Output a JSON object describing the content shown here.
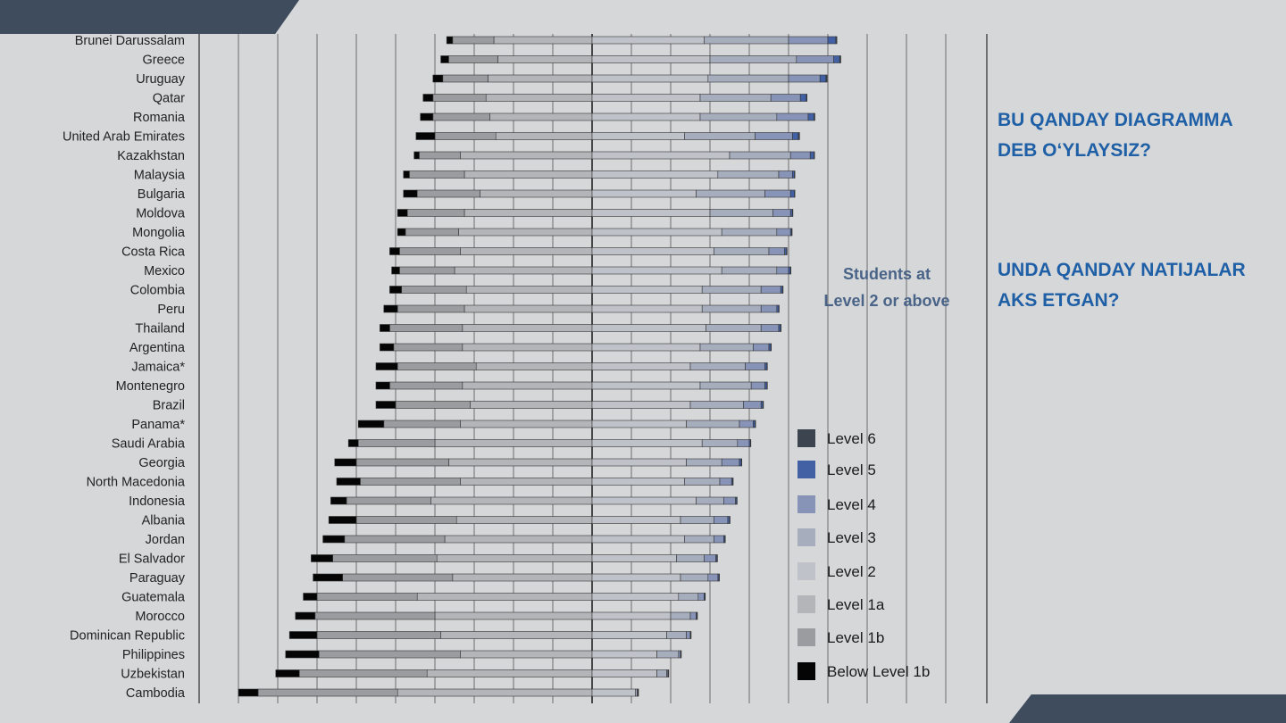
{
  "colors": {
    "level6": "#3b444f",
    "level5": "#4260a4",
    "level4": "#8794b8",
    "level3": "#a6adbd",
    "level2": "#bfc2c9",
    "level1a": "#b4b5b8",
    "level1b": "#9b9c9f",
    "below1b": "#050505",
    "question_text": "#1f5fa6",
    "band": "#3f4c5e"
  },
  "questions": {
    "q1": "BU QANDAY DIAGRAMMA DEB O‘YLAYSIZ?",
    "q2": "UNDA QANDAY NATIJALAR AKS ETGAN?"
  },
  "chart_data": {
    "type": "bar",
    "orientation": "horizontal",
    "stacked": true,
    "diverging": true,
    "title": "",
    "xlabel": "",
    "ylabel": "",
    "xlim": [
      -90,
      90
    ],
    "zero_line_annotation": "Students at Level 2 or above",
    "legend_position": "right",
    "grid": true,
    "categories": [
      "Brunei Darussalam",
      "Greece",
      "Uruguay",
      "Qatar",
      "Romania",
      "United Arab Emirates",
      "Kazakhstan",
      "Malaysia",
      "Bulgaria",
      "Moldova",
      "Mongolia",
      "Costa Rica",
      "Mexico",
      "Colombia",
      "Peru",
      "Thailand",
      "Argentina",
      "Jamaica*",
      "Montenegro",
      "Brazil",
      "Panama*",
      "Saudi Arabia",
      "Georgia",
      "North Macedonia",
      "Indonesia",
      "Albania",
      "Jordan",
      "El Salvador",
      "Paraguay",
      "Guatemala",
      "Morocco",
      "Dominican Republic",
      "Philippines",
      "Uzbekistan",
      "Cambodia"
    ],
    "series": [
      {
        "name": "Below Level 1b",
        "values": [
          -1.5,
          -2,
          -2.5,
          -2.5,
          -3.2,
          -4.8,
          -1.3,
          -1.5,
          -3.5,
          -2.5,
          -2,
          -2.5,
          -2,
          -3,
          -3.5,
          -2.5,
          -3.5,
          -5.5,
          -3.5,
          -5,
          -6.5,
          -2.5,
          -5.5,
          -6,
          -4,
          -7,
          -5.5,
          -5.5,
          -7.5,
          -3.5,
          -5,
          -7,
          -8.5,
          -6,
          -5
        ]
      },
      {
        "name": "Level 1b",
        "values": [
          -10.5,
          -12.5,
          -11.5,
          -13.5,
          -14.5,
          -15.5,
          -10.5,
          -14,
          -16,
          -14.5,
          -13.5,
          -15.5,
          -14,
          -16.5,
          -17,
          -18.5,
          -17.5,
          -20,
          -18.5,
          -19,
          -19.5,
          -19.5,
          -23.5,
          -25.5,
          -21.5,
          -25.5,
          -25.5,
          -26.5,
          -28,
          -25.5,
          -30.5,
          -31.5,
          -36,
          -32.5,
          -35.5
        ]
      },
      {
        "name": "Level 1a",
        "values": [
          -25,
          -24,
          -26.5,
          -27,
          -26,
          -24.5,
          -33.5,
          -32.5,
          -28.5,
          -32.5,
          -34,
          -33.5,
          -35,
          -32,
          -32.5,
          -33,
          -33,
          -29.5,
          -33,
          -31,
          -33.5,
          -40,
          -36.5,
          -33.5,
          -41,
          -34.5,
          -37.5,
          -39.5,
          -35.5,
          -44.5,
          -40,
          -38.5,
          -33.5,
          -42,
          -49.5
        ]
      },
      {
        "name": "Level 2",
        "values": [
          28.5,
          30,
          29.5,
          27.5,
          27.5,
          23.5,
          35,
          32,
          26.5,
          30,
          33,
          31,
          33,
          28,
          28,
          29,
          27.5,
          25,
          27.5,
          25,
          24,
          28,
          24,
          23.5,
          26.5,
          22.5,
          23.5,
          21.5,
          22.5,
          22,
          20,
          19,
          16.5,
          16.5,
          11
        ]
      },
      {
        "name": "Level 3",
        "values": [
          21.5,
          22,
          20.5,
          18,
          19.5,
          18,
          15.5,
          15.5,
          17.5,
          16,
          14,
          14,
          14,
          15,
          15,
          14,
          13.5,
          14,
          13,
          13.5,
          13.5,
          9,
          9,
          9,
          7,
          8.5,
          7.5,
          7,
          7,
          5,
          5,
          5,
          5.5,
          2.5,
          0.5
        ]
      },
      {
        "name": "Level 4",
        "values": [
          10,
          9.5,
          8,
          7.5,
          8,
          9.5,
          5,
          3.5,
          6.5,
          4.5,
          3.5,
          4,
          3,
          5,
          4,
          4.5,
          4,
          5,
          3.5,
          4.5,
          3.5,
          3,
          4.5,
          3,
          3,
          3.5,
          2.5,
          3,
          2.5,
          1.5,
          1.5,
          1,
          0.5,
          0.3,
          0.1
        ]
      },
      {
        "name": "Level 5",
        "values": [
          2,
          1.5,
          1.5,
          1.5,
          1.5,
          1.5,
          1,
          0.5,
          1,
          0.5,
          0.3,
          0.5,
          0.5,
          0.5,
          0.5,
          0.5,
          0.5,
          0.5,
          0.5,
          0.5,
          0.5,
          0.3,
          0.5,
          0.3,
          0.3,
          0.5,
          0.3,
          0.3,
          0.3,
          0.2,
          0.2,
          0.1,
          0.1,
          0.1,
          0.1
        ]
      },
      {
        "name": "Level 6",
        "values": [
          0.3,
          0.3,
          0.3,
          0.2,
          0.2,
          0.3,
          0.1,
          0.1,
          0.1,
          0.1,
          0.1,
          0.1,
          0.1,
          0.1,
          0.1,
          0.1,
          0.1,
          0.1,
          0.1,
          0.1,
          0.1,
          0.1,
          0.1,
          0.1,
          0.1,
          0.1,
          0.1,
          0.1,
          0.1,
          0.1,
          0.1,
          0.1,
          0.1,
          0.1,
          0.1
        ]
      }
    ],
    "legend": [
      "Level 6",
      "Level 5",
      "Level 4",
      "Level 3",
      "Level 2",
      "Level 1a",
      "Level 1b",
      "Below Level 1b"
    ]
  }
}
